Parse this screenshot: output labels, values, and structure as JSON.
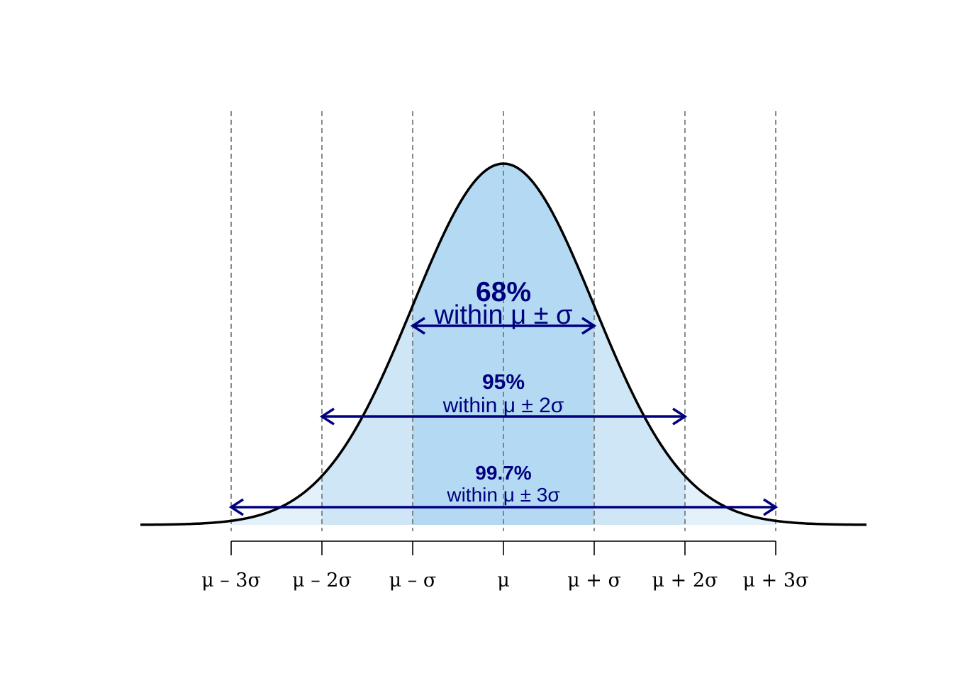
{
  "chart_data": {
    "type": "area",
    "distribution": "normal",
    "x_range": [
      -4,
      4
    ],
    "mean": 0,
    "sd": 1,
    "x_ticks": [
      -3,
      -2,
      -1,
      0,
      1,
      2,
      3
    ],
    "tick_labels": [
      "μ – 3σ",
      "μ – 2σ",
      "μ – σ",
      "μ",
      "μ + σ",
      "μ + 2σ",
      "μ + 3σ"
    ],
    "reference_lines": {
      "x": [
        -3,
        -2,
        -1,
        0,
        1,
        2,
        3
      ],
      "style": "dashed",
      "color": "#6e6e6e"
    },
    "bands": [
      {
        "from": -3,
        "to": 3,
        "percent_label": "99.7%",
        "range_label": "within μ ± 3σ",
        "fill": "#e3f1fb"
      },
      {
        "from": -2,
        "to": 2,
        "percent_label": "95%",
        "range_label": "within μ ± 2σ",
        "fill": "#cfe6f6"
      },
      {
        "from": -1,
        "to": 1,
        "percent_label": "68%",
        "range_label": "within μ ± σ",
        "fill": "#b3daf2"
      }
    ],
    "curve_color": "#000000",
    "annotation_color": "#00007f",
    "title": "",
    "xlabel": "",
    "ylabel": "",
    "grid": false,
    "legend": "none"
  }
}
